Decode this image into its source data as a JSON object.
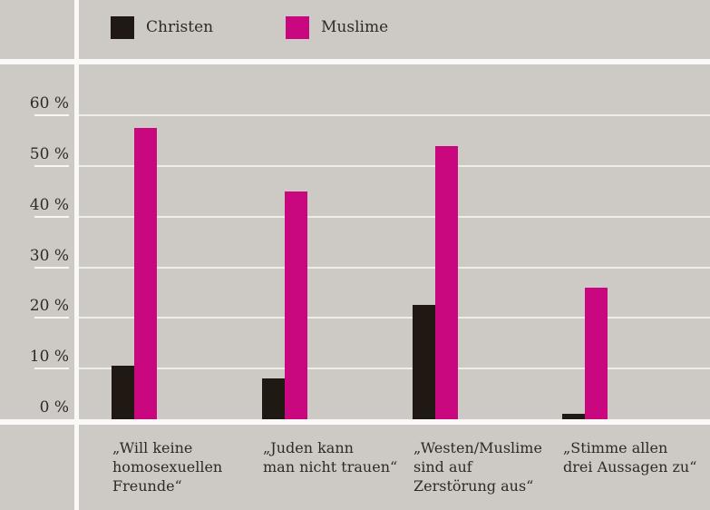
{
  "chart_data": {
    "type": "bar",
    "title": "",
    "xlabel": "",
    "ylabel": "",
    "ylim": [
      0,
      65
    ],
    "grid": true,
    "legend_position": "top",
    "categories": [
      "„Will keine\nhomosexuellen\nFreunde“",
      "„Juden kann\nman nicht trauen“",
      "„Westen/Muslime\nsind auf\nZerstörung aus“",
      "„Stimme allen\ndrei Aussagen zu“"
    ],
    "series": [
      {
        "name": "Christen",
        "color": "#1f1813",
        "values": [
          10.5,
          8,
          22.5,
          1
        ]
      },
      {
        "name": "Muslime",
        "color": "#c9077e",
        "values": [
          57.5,
          45,
          54,
          26
        ]
      }
    ],
    "yticks": [
      {
        "value": 60,
        "label": "60 %"
      },
      {
        "value": 50,
        "label": "50 %"
      },
      {
        "value": 40,
        "label": "40 %"
      },
      {
        "value": 30,
        "label": "30 %"
      },
      {
        "value": 20,
        "label": "20 %"
      },
      {
        "value": 10,
        "label": "10 %"
      },
      {
        "value": 0,
        "label": "0 %"
      }
    ]
  },
  "colors": {
    "background": "#cdcac5",
    "divider": "#faf9f7",
    "gridline": "#efede9",
    "christen": "#1f1813",
    "muslime": "#c9077e",
    "text": "#2e2a26"
  }
}
